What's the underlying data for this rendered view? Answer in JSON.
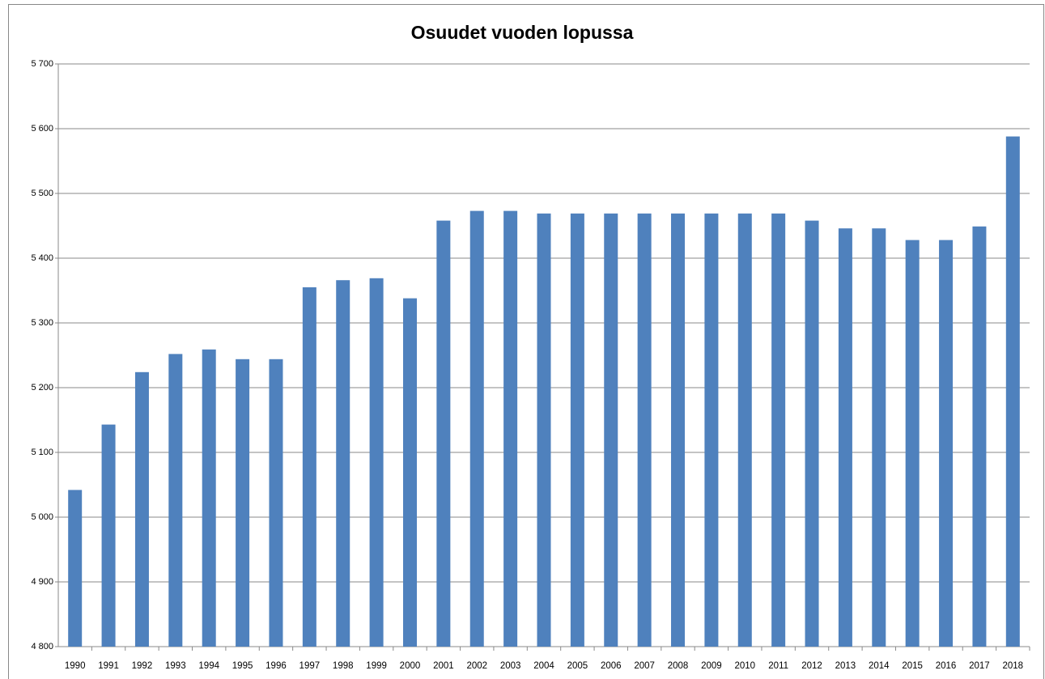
{
  "chart_data": {
    "type": "bar",
    "title": "Osuudet vuoden lopussa",
    "categories": [
      "1990",
      "1991",
      "1992",
      "1993",
      "1994",
      "1995",
      "1996",
      "1997",
      "1998",
      "1999",
      "2000",
      "2001",
      "2002",
      "2003",
      "2004",
      "2005",
      "2006",
      "2007",
      "2008",
      "2009",
      "2010",
      "2011",
      "2012",
      "2013",
      "2014",
      "2015",
      "2016",
      "2017",
      "2018"
    ],
    "values": [
      5042,
      5143,
      5224,
      5252,
      5259,
      5244,
      5244,
      5355,
      5366,
      5369,
      5338,
      5458,
      5473,
      5473,
      5469,
      5469,
      5469,
      5469,
      5469,
      5469,
      5469,
      5469,
      5458,
      5446,
      5446,
      5428,
      5428,
      5449,
      5588
    ],
    "color": "#4f81bd",
    "ylim": [
      4800,
      5700
    ],
    "yticks": [
      {
        "value": 4800,
        "label": "4 800"
      },
      {
        "value": 4900,
        "label": "4 900"
      },
      {
        "value": 5000,
        "label": "5 000"
      },
      {
        "value": 5100,
        "label": "5 100"
      },
      {
        "value": 5200,
        "label": "5 200"
      },
      {
        "value": 5300,
        "label": "5 300"
      },
      {
        "value": 5400,
        "label": "5 400"
      },
      {
        "value": 5500,
        "label": "5 500"
      },
      {
        "value": 5600,
        "label": "5 600"
      },
      {
        "value": 5700,
        "label": "5 700"
      }
    ],
    "grid": true
  }
}
